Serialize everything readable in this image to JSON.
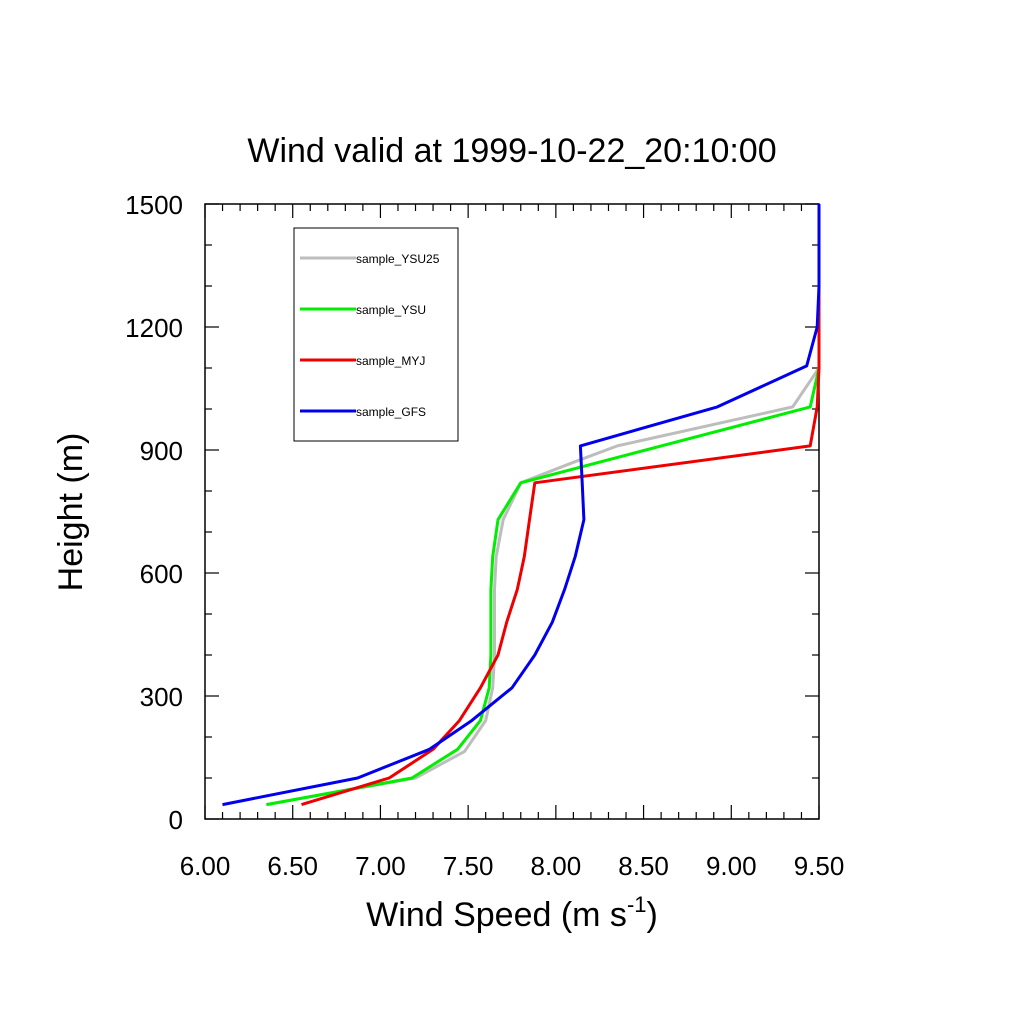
{
  "chart_data": {
    "type": "line",
    "title": "Wind valid at 1999-10-22_20:10:00",
    "xlabel": "Wind Speed (m s",
    "xlabel_sup": "-1",
    "xlabel_close": ")",
    "ylabel": "Height (m)",
    "xlim": [
      6.0,
      9.5
    ],
    "ylim": [
      0,
      1500
    ],
    "x_ticks": [
      6.0,
      6.5,
      7.0,
      7.5,
      8.0,
      8.5,
      9.0,
      9.5
    ],
    "x_tick_labels": [
      "6.00",
      "6.50",
      "7.00",
      "7.50",
      "8.00",
      "8.50",
      "9.00",
      "9.50"
    ],
    "y_ticks": [
      0,
      300,
      600,
      900,
      1200,
      1500
    ],
    "y_tick_labels": [
      "0",
      "300",
      "600",
      "900",
      "1200",
      "1500"
    ],
    "grid": false,
    "legend_position": "top-left",
    "series": [
      {
        "name": "sample_YSU25",
        "color": "#bdbdbd",
        "points": [
          [
            6.35,
            35
          ],
          [
            7.2,
            100
          ],
          [
            7.48,
            165
          ],
          [
            7.6,
            240
          ],
          [
            7.64,
            320
          ],
          [
            7.65,
            400
          ],
          [
            7.65,
            480
          ],
          [
            7.65,
            560
          ],
          [
            7.66,
            640
          ],
          [
            7.7,
            730
          ],
          [
            7.8,
            820
          ],
          [
            8.1,
            870
          ],
          [
            8.35,
            910
          ],
          [
            9.35,
            1005
          ],
          [
            9.5,
            1100
          ],
          [
            9.5,
            1200
          ],
          [
            9.5,
            1300
          ],
          [
            9.5,
            1400
          ],
          [
            9.5,
            1500
          ]
        ]
      },
      {
        "name": "sample_YSU",
        "color": "#00ee00",
        "points": [
          [
            6.35,
            35
          ],
          [
            7.18,
            100
          ],
          [
            7.44,
            170
          ],
          [
            7.57,
            240
          ],
          [
            7.62,
            320
          ],
          [
            7.63,
            400
          ],
          [
            7.63,
            480
          ],
          [
            7.63,
            560
          ],
          [
            7.64,
            640
          ],
          [
            7.67,
            730
          ],
          [
            7.8,
            820
          ],
          [
            9.45,
            1005
          ],
          [
            9.5,
            1100
          ],
          [
            9.5,
            1200
          ],
          [
            9.5,
            1300
          ],
          [
            9.5,
            1400
          ],
          [
            9.5,
            1500
          ]
        ]
      },
      {
        "name": "sample_MYJ",
        "color": "#ee0000",
        "points": [
          [
            6.55,
            35
          ],
          [
            7.05,
            100
          ],
          [
            7.3,
            170
          ],
          [
            7.45,
            240
          ],
          [
            7.57,
            320
          ],
          [
            7.67,
            400
          ],
          [
            7.72,
            480
          ],
          [
            7.78,
            560
          ],
          [
            7.82,
            640
          ],
          [
            7.85,
            730
          ],
          [
            7.88,
            820
          ],
          [
            9.45,
            910
          ],
          [
            9.49,
            1005
          ],
          [
            9.5,
            1100
          ],
          [
            9.5,
            1200
          ],
          [
            9.5,
            1300
          ],
          [
            9.5,
            1400
          ],
          [
            9.5,
            1500
          ]
        ]
      },
      {
        "name": "sample_GFS",
        "color": "#0000ee",
        "points": [
          [
            6.1,
            35
          ],
          [
            6.87,
            100
          ],
          [
            7.28,
            170
          ],
          [
            7.52,
            240
          ],
          [
            7.75,
            320
          ],
          [
            7.88,
            400
          ],
          [
            7.98,
            480
          ],
          [
            8.05,
            560
          ],
          [
            8.11,
            640
          ],
          [
            8.16,
            730
          ],
          [
            8.15,
            820
          ],
          [
            8.14,
            910
          ],
          [
            8.92,
            1005
          ],
          [
            9.43,
            1105
          ],
          [
            9.49,
            1200
          ],
          [
            9.5,
            1300
          ],
          [
            9.5,
            1400
          ],
          [
            9.5,
            1500
          ]
        ]
      }
    ]
  }
}
